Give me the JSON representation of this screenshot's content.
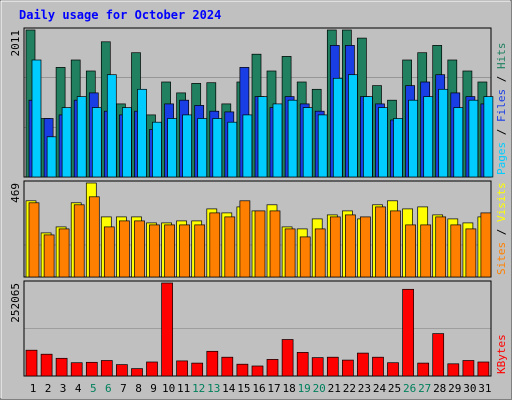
{
  "chart_data": {
    "type": "bar",
    "title": "Daily usage for October 2024",
    "days": [
      "1",
      "2",
      "3",
      "4",
      "5",
      "6",
      "7",
      "8",
      "9",
      "10",
      "11",
      "12",
      "13",
      "14",
      "15",
      "16",
      "17",
      "18",
      "19",
      "20",
      "21",
      "22",
      "23",
      "24",
      "25",
      "26",
      "27",
      "28",
      "29",
      "30",
      "31"
    ],
    "weekend_days": [
      "5",
      "6",
      "12",
      "13",
      "19",
      "20",
      "26",
      "27"
    ],
    "top_panel": {
      "ymax_label": "2011",
      "ymax": 2011,
      "series": [
        {
          "name": "Hits",
          "color": "#208060",
          "values": [
            2011,
            800,
            1500,
            1600,
            1450,
            1850,
            1000,
            1700,
            850,
            1300,
            1150,
            1280,
            1290,
            1000,
            1300,
            1680,
            1450,
            1650,
            1300,
            1200,
            2011,
            2011,
            1900,
            1250,
            1050,
            1600,
            1700,
            1800,
            1600,
            1450,
            1300
          ]
        },
        {
          "name": "Files",
          "color": "#1a3ee6",
          "values": [
            1050,
            800,
            850,
            1050,
            1150,
            900,
            850,
            900,
            650,
            1000,
            1050,
            980,
            900,
            890,
            1500,
            1100,
            950,
            1100,
            1000,
            900,
            1800,
            1800,
            1100,
            1000,
            780,
            1250,
            1300,
            1400,
            1150,
            1100,
            1000
          ]
        },
        {
          "name": "Pages",
          "color": "#00ccff",
          "values": [
            1600,
            550,
            950,
            1100,
            950,
            1400,
            950,
            1200,
            750,
            800,
            850,
            800,
            800,
            750,
            850,
            1100,
            1000,
            1050,
            950,
            850,
            1350,
            1400,
            1100,
            950,
            800,
            1050,
            1100,
            1200,
            950,
            1050,
            1100
          ]
        }
      ]
    },
    "mid_panel": {
      "ymax_label": "469",
      "ymax": 469,
      "series": [
        {
          "name": "Visits",
          "color": "#ffff00",
          "values": [
            380,
            220,
            250,
            370,
            469,
            300,
            300,
            300,
            270,
            270,
            280,
            280,
            340,
            320,
            350,
            330,
            360,
            250,
            240,
            290,
            310,
            330,
            290,
            360,
            380,
            340,
            350,
            310,
            290,
            270,
            300
          ]
        },
        {
          "name": "Sites",
          "color": "#ff8000",
          "values": [
            370,
            210,
            240,
            360,
            400,
            250,
            280,
            280,
            260,
            260,
            260,
            260,
            320,
            300,
            380,
            330,
            330,
            240,
            200,
            240,
            300,
            310,
            300,
            350,
            330,
            260,
            260,
            300,
            260,
            240,
            320
          ]
        }
      ]
    },
    "bottom_panel": {
      "ymax_label": "252065",
      "ymax": 252065,
      "series": [
        {
          "name": "KBytes",
          "color": "#ff0000",
          "values": [
            70000,
            59000,
            48000,
            36000,
            37000,
            42000,
            31000,
            20000,
            38000,
            252065,
            41000,
            35000,
            67000,
            51000,
            32000,
            27000,
            45000,
            99000,
            64000,
            50000,
            51000,
            43000,
            62000,
            51000,
            36000,
            235000,
            35000,
            115000,
            33000,
            42000,
            38000
          ]
        }
      ]
    },
    "side_labels": {
      "top": [
        "Pages",
        "Files",
        "Hits"
      ],
      "mid": [
        "Sites",
        "Visits"
      ],
      "bottom": [
        "KBytes"
      ],
      "separator": " / "
    }
  }
}
